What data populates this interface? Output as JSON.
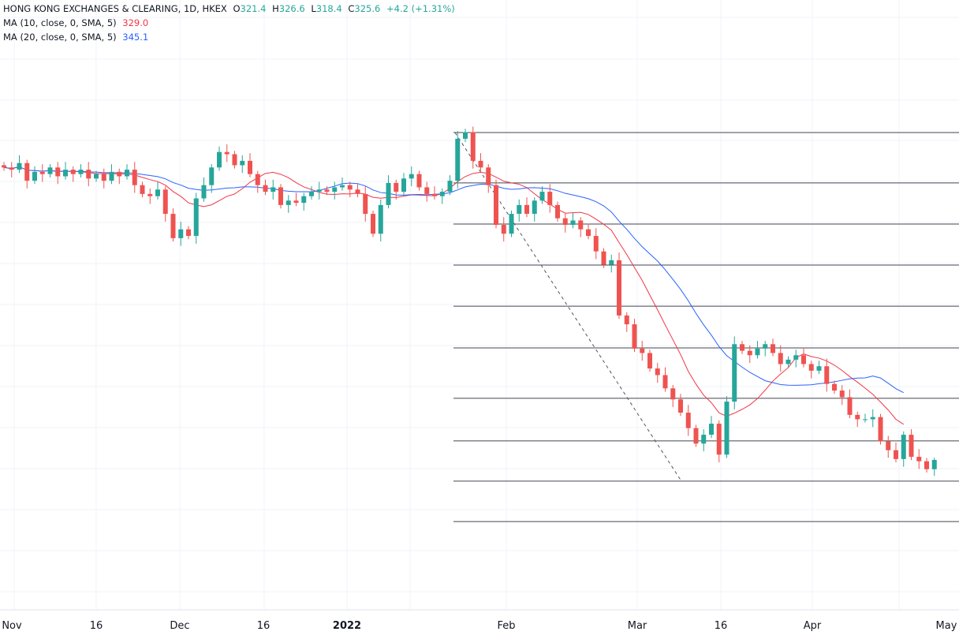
{
  "legend": {
    "symbol": "HONG KONG EXCHANGES & CLEARING, 1D, HKEX",
    "o_label": "O",
    "o": "321.4",
    "h_label": "H",
    "h": "326.6",
    "l_label": "L",
    "l": "318.4",
    "c_label": "C",
    "c": "325.6",
    "change": "+4.2 (+1.31%)",
    "ma10": {
      "label": "MA (10, close, 0, SMA, 5)",
      "value": "329.0"
    },
    "ma20": {
      "label": "MA (20, close, 0, SMA, 5)",
      "value": "345.1"
    }
  },
  "colors": {
    "up": "#26a69a",
    "down": "#ef5350",
    "ma10": "#f23645",
    "ma20": "#2962ff",
    "legend_value": "#26a69a",
    "level": "#434651"
  },
  "chart_data": {
    "type": "candlestick",
    "title": "HONG KONG EXCHANGES & CLEARING, 1D, HKEX",
    "x_tick_labels": [
      "Nov",
      "16",
      "Dec",
      "16",
      "2022",
      "Feb",
      "Mar",
      "16",
      "Apr",
      "May"
    ],
    "closes": [
      458,
      457,
      460,
      452,
      456,
      455,
      458,
      454,
      457,
      455,
      457,
      453,
      455,
      452,
      456,
      454,
      457,
      450,
      446,
      445,
      448,
      437,
      426,
      430,
      427,
      444,
      450,
      458,
      465,
      464,
      459,
      461,
      455,
      450,
      447,
      449,
      441,
      443,
      442,
      445,
      447,
      448,
      447,
      449,
      450,
      448,
      446,
      437,
      428,
      441,
      451,
      447,
      453,
      455,
      449,
      446,
      445,
      447,
      452,
      471,
      474,
      461,
      458,
      450,
      432,
      428,
      437,
      441,
      437,
      443,
      447,
      441,
      435,
      432,
      434,
      430,
      427,
      420,
      414,
      416,
      391,
      387,
      376,
      374,
      367,
      364,
      358,
      353,
      347,
      340,
      333,
      337,
      342,
      328,
      352,
      378,
      375,
      373,
      376,
      378,
      374,
      369,
      371,
      373,
      369,
      366,
      368,
      360,
      357,
      354,
      346,
      344,
      344,
      345,
      334,
      330,
      326,
      337,
      327,
      325,
      321.4,
      325.6
    ],
    "last_candle": {
      "open": 321.4,
      "high": 326.6,
      "low": 318.4,
      "close": 325.6
    },
    "indicators": [
      {
        "name": "MA 10 SMA",
        "length": 10,
        "offset": 5
      },
      {
        "name": "MA 20 SMA",
        "length": 20,
        "offset": 5
      }
    ],
    "horizontal_levels": [
      473.8,
      451.0,
      432.4,
      413.8,
      395.2,
      376.3,
      353.5,
      334.2,
      316.0,
      297.7
    ],
    "trend_line": {
      "from_price": 473.8,
      "to_price": 316.0,
      "style": "dashed"
    },
    "grid": true
  }
}
